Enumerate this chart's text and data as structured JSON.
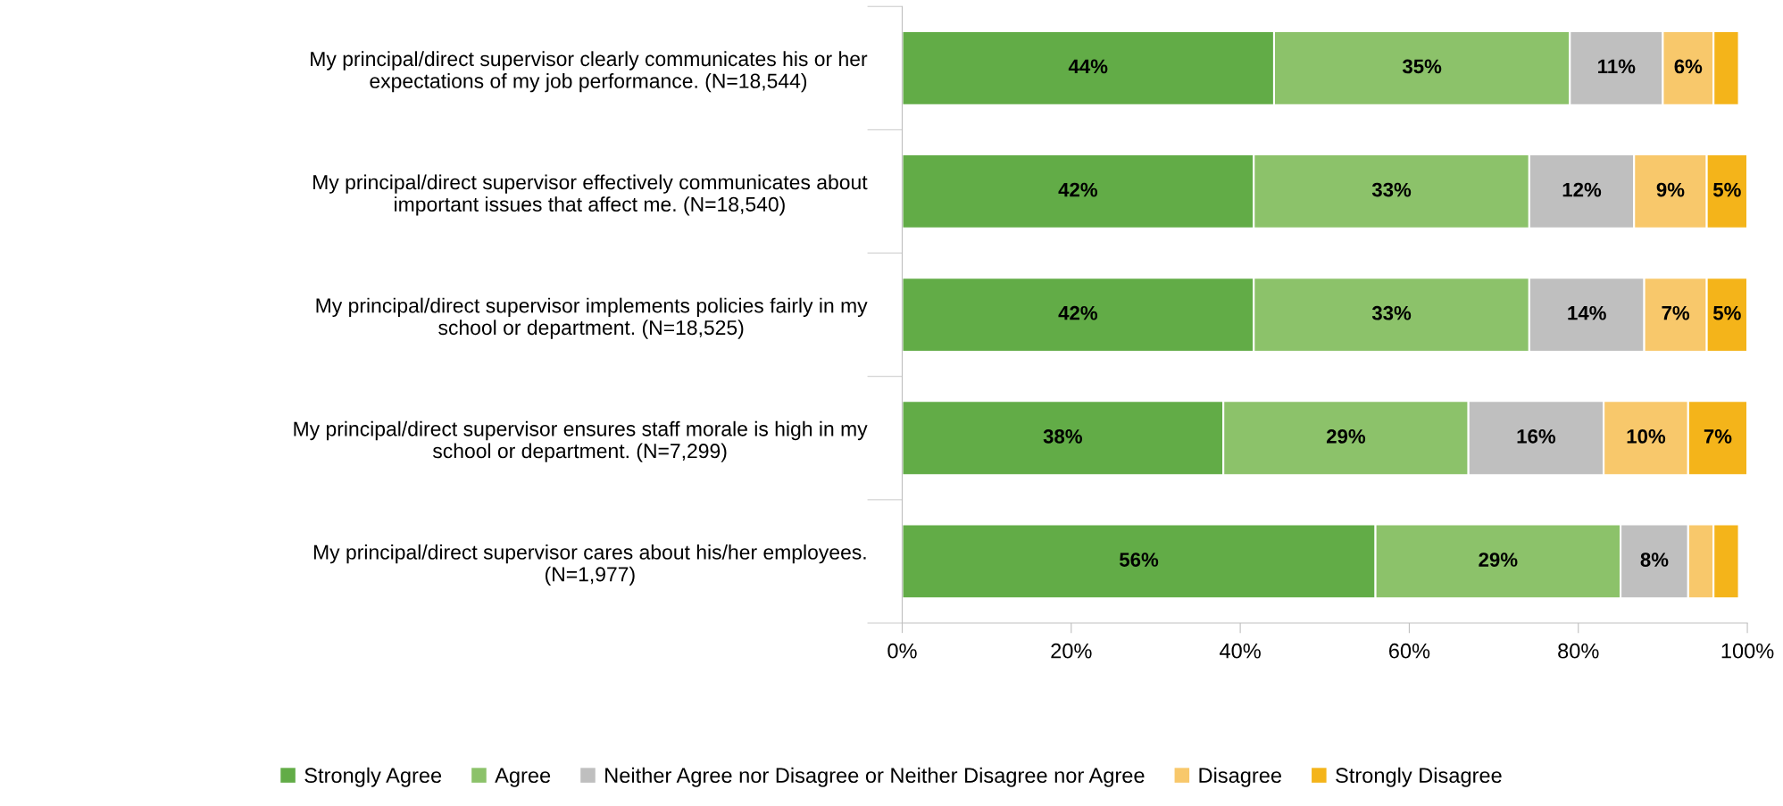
{
  "chart_data": {
    "type": "bar",
    "orientation": "horizontal",
    "stacked": true,
    "categories": [
      "My principal/direct supervisor clearly communicates his or her\nexpectations of my job performance. (N=18,544)",
      "My principal/direct supervisor effectively communicates about\nimportant issues that affect me. (N=18,540)",
      "My principal/direct supervisor implements policies fairly in my\nschool or department. (N=18,525)",
      "My principal/direct supervisor ensures staff morale is high in my\nschool or department. (N=7,299)",
      "My principal/direct supervisor cares about his/her employees.\n(N=1,977)"
    ],
    "series": [
      {
        "name": "Strongly Agree",
        "color": "#62ac47",
        "values": [
          44,
          41.6,
          41.6,
          38,
          56
        ],
        "value_labels": [
          "44%",
          "42%",
          "42%",
          "38%",
          "56%"
        ]
      },
      {
        "name": "Agree",
        "color": "#8cc26a",
        "values": [
          35,
          32.6,
          32.6,
          29,
          29
        ],
        "value_labels": [
          "35%",
          "33%",
          "33%",
          "29%",
          "29%"
        ]
      },
      {
        "name": "Neither Agree nor Disagree or Neither Disagree nor Agree",
        "color": "#bfbfbf",
        "values": [
          11,
          12.4,
          13.6,
          16,
          8
        ],
        "value_labels": [
          "11%",
          "12%",
          "14%",
          "16%",
          "8%"
        ]
      },
      {
        "name": "Disagree",
        "color": "#f8c86b",
        "values": [
          6,
          8.6,
          7.4,
          10,
          3
        ],
        "value_labels": [
          "6%",
          "9%",
          "7%",
          "10%",
          null
        ]
      },
      {
        "name": "Strongly Disagree",
        "color": "#f4b41a",
        "values": [
          3,
          4.8,
          4.8,
          7,
          3
        ],
        "value_labels": [
          null,
          "5%",
          "5%",
          "7%",
          null
        ]
      }
    ],
    "xlim": [
      0,
      100
    ],
    "xticks": [
      {
        "value": 0,
        "label": "0%"
      },
      {
        "value": 20,
        "label": "20%"
      },
      {
        "value": 40,
        "label": "40%"
      },
      {
        "value": 60,
        "label": "60%"
      },
      {
        "value": 80,
        "label": "80%"
      },
      {
        "value": 100,
        "label": "100%"
      }
    ],
    "grid": false,
    "legend": "bottom"
  }
}
